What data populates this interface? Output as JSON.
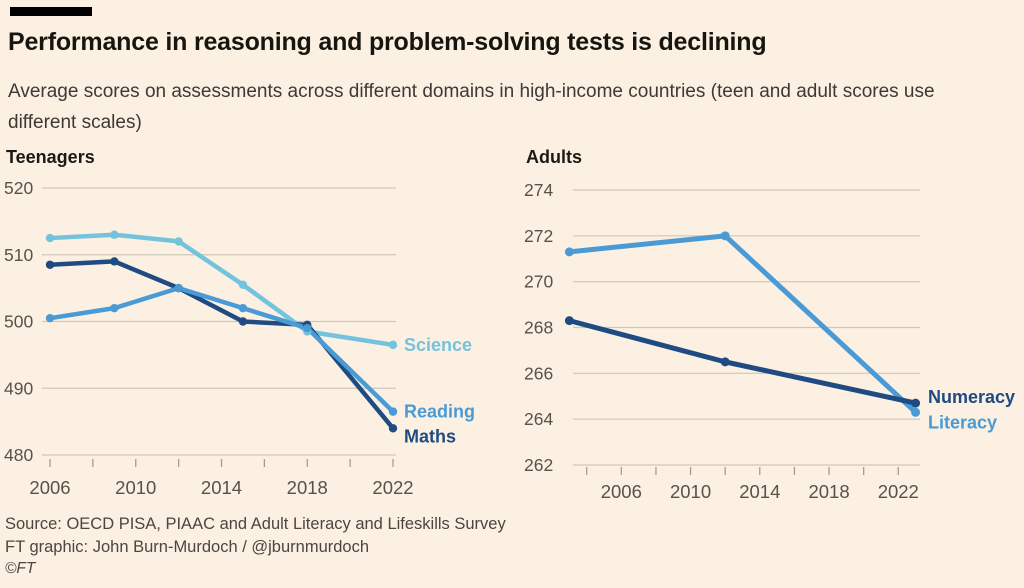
{
  "header": {
    "title": "Performance in reasoning and problem-solving tests is declining",
    "subtitle": "Average scores on assessments across different domains in high-income countries (teen and adult scores use different scales)"
  },
  "colors": {
    "background": "#FBF0E2",
    "grid": "#CFC7BA",
    "axis": "#A69D92",
    "axis_label": "#57524C",
    "science_blue": "#74C3DD",
    "reading_blue": "#4A9BD5",
    "maths_navy": "#1F4B82"
  },
  "chart_data": [
    {
      "type": "line",
      "title": "Teenagers",
      "x": [
        2006,
        2009,
        2012,
        2015,
        2018,
        2022
      ],
      "series": [
        {
          "name": "Science",
          "color": "#74C3DD",
          "label_dy": 0,
          "values": [
            512.5,
            513,
            512,
            505.5,
            498.5,
            496.5
          ]
        },
        {
          "name": "Maths",
          "color": "#1F4B82",
          "label_dy": 8,
          "values": [
            508.5,
            509,
            505,
            500,
            499.5,
            484
          ]
        },
        {
          "name": "Reading",
          "color": "#4A9BD5",
          "label_dy": 0,
          "values": [
            500.5,
            502,
            505,
            502,
            499,
            486.5
          ]
        }
      ],
      "ylim": [
        480,
        520
      ],
      "yticks": [
        480,
        490,
        500,
        510,
        520
      ],
      "xticks": [
        2006,
        2008,
        2010,
        2012,
        2014,
        2016,
        2018,
        2020,
        2022
      ],
      "xtick_labels": [
        2006,
        2010,
        2014,
        2018,
        2022
      ],
      "grid": true,
      "legend_position": "line-end-labels"
    },
    {
      "type": "line",
      "title": "Adults",
      "x": [
        2003,
        2012,
        2023
      ],
      "series": [
        {
          "name": "Literacy",
          "color": "#4A9BD5",
          "label_dy": 10,
          "values": [
            271.3,
            272,
            264.3
          ]
        },
        {
          "name": "Numeracy",
          "color": "#1F4B82",
          "label_dy": -6,
          "values": [
            268.3,
            266.5,
            264.7
          ]
        }
      ],
      "ylim": [
        262,
        274
      ],
      "yticks": [
        262,
        264,
        266,
        268,
        270,
        272,
        274
      ],
      "xticks": [
        2004,
        2006,
        2008,
        2010,
        2012,
        2014,
        2016,
        2018,
        2020,
        2022
      ],
      "xtick_labels": [
        2006,
        2010,
        2014,
        2018,
        2022
      ],
      "grid": true,
      "legend_position": "line-end-labels"
    }
  ],
  "footer": {
    "source": "Source: OECD PISA, PIAAC and Adult Literacy and Lifeskills Survey",
    "credit": "FT graphic: John Burn-Murdoch / @jburnmurdoch",
    "copyright": "©FT"
  }
}
